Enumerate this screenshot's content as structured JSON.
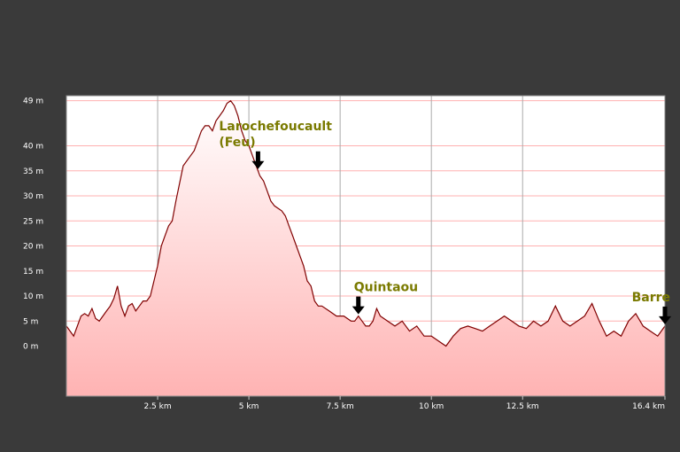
{
  "chart_data": {
    "type": "area",
    "title": "",
    "xlabel": "",
    "ylabel": "",
    "xlim": [
      0,
      16.4
    ],
    "ylim": [
      -10,
      50
    ],
    "y_ticks": [
      {
        "value": 0,
        "label": "0 m"
      },
      {
        "value": 5,
        "label": "5 m"
      },
      {
        "value": 10,
        "label": "10 m"
      },
      {
        "value": 15,
        "label": "15 m"
      },
      {
        "value": 20,
        "label": "20 m"
      },
      {
        "value": 25,
        "label": "25 m"
      },
      {
        "value": 30,
        "label": "30 m"
      },
      {
        "value": 35,
        "label": "35 m"
      },
      {
        "value": 40,
        "label": "40 m"
      },
      {
        "value": 49,
        "label": "49 m"
      }
    ],
    "x_ticks": [
      {
        "value": 2.5,
        "label": "2.5 km"
      },
      {
        "value": 5,
        "label": "5 km"
      },
      {
        "value": 7.5,
        "label": "7.5 km"
      },
      {
        "value": 10,
        "label": "10 km"
      },
      {
        "value": 12.5,
        "label": "12.5 km"
      },
      {
        "value": 16.4,
        "label": "16.4 km"
      }
    ],
    "grid": true,
    "series": [
      {
        "x": [
          0,
          0.2,
          0.4,
          0.5,
          0.6,
          0.7,
          0.8,
          0.9,
          1.0,
          1.1,
          1.2,
          1.3,
          1.4,
          1.5,
          1.6,
          1.7,
          1.8,
          1.9,
          2.0,
          2.1,
          2.2,
          2.3,
          2.4,
          2.5,
          2.6,
          2.7,
          2.8,
          2.9,
          3.0,
          3.2,
          3.4,
          3.5,
          3.6,
          3.7,
          3.8,
          3.9,
          4.0,
          4.1,
          4.2,
          4.3,
          4.4,
          4.5,
          4.6,
          4.7,
          4.8,
          4.9,
          5.0,
          5.1,
          5.2,
          5.3,
          5.4,
          5.5,
          5.6,
          5.7,
          5.8,
          5.9,
          6.0,
          6.1,
          6.2,
          6.3,
          6.4,
          6.5,
          6.6,
          6.7,
          6.8,
          6.9,
          7.0,
          7.2,
          7.4,
          7.6,
          7.8,
          7.9,
          8.0,
          8.1,
          8.2,
          8.3,
          8.4,
          8.5,
          8.6,
          8.8,
          9.0,
          9.2,
          9.4,
          9.6,
          9.8,
          10.0,
          10.2,
          10.4,
          10.6,
          10.8,
          11.0,
          11.2,
          11.4,
          11.6,
          11.8,
          12.0,
          12.2,
          12.4,
          12.6,
          12.8,
          13.0,
          13.2,
          13.4,
          13.6,
          13.8,
          14.0,
          14.2,
          14.4,
          14.6,
          14.8,
          15.0,
          15.2,
          15.4,
          15.6,
          15.8,
          16.0,
          16.2,
          16.4
        ],
        "y": [
          4,
          2,
          6,
          6.5,
          6,
          7.5,
          5.5,
          5,
          6,
          7,
          8,
          9.5,
          12,
          8,
          6,
          8,
          8.5,
          7,
          8,
          9,
          9,
          10,
          13,
          16,
          20,
          22,
          24,
          25,
          29,
          36,
          38,
          39,
          41,
          43,
          44,
          44,
          43,
          45,
          46,
          47,
          48.5,
          49,
          48,
          46,
          43,
          41,
          40,
          38,
          36,
          34,
          33,
          31,
          29,
          28,
          27.5,
          27,
          26,
          24,
          22,
          20,
          18,
          16,
          13,
          12,
          9,
          8,
          8,
          7,
          6,
          6,
          5,
          5,
          6,
          5,
          4,
          4,
          5,
          7.5,
          6,
          5,
          4,
          5,
          3,
          4,
          2,
          2,
          1,
          0,
          2,
          3.5,
          4,
          3.5,
          3,
          4,
          5,
          6,
          5,
          4,
          3.5,
          5,
          4,
          5,
          8,
          5,
          4,
          5,
          6,
          8.5,
          5,
          2,
          3,
          2,
          5,
          6.5,
          4,
          3,
          2,
          4
        ]
      }
    ],
    "annotations": [
      {
        "label_lines": [
          "Larochefoucault",
          "(Feu)"
        ],
        "x": 5.25
      },
      {
        "label_lines": [
          "Quintaou"
        ],
        "x": 8.0
      },
      {
        "label_lines": [
          "Barre"
        ],
        "x": 16.4
      }
    ]
  }
}
